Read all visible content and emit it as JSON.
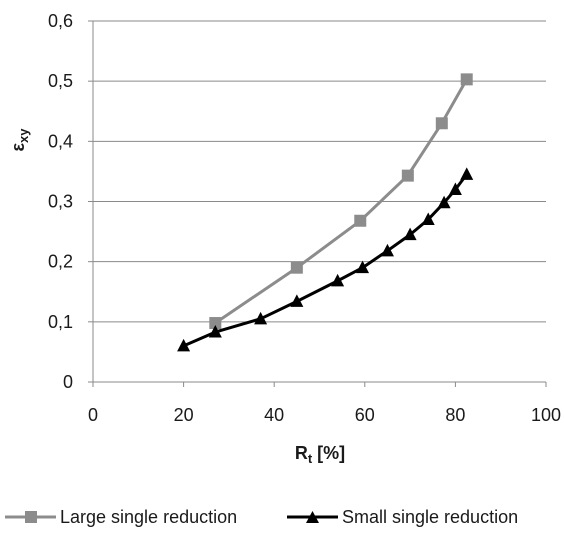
{
  "chart_data": {
    "type": "line",
    "xlabel": "R",
    "xlabel_sub": "t",
    "xlabel_suffix": " [%]",
    "ylabel": "ε",
    "ylabel_sub": "xy",
    "xlim": [
      0,
      100
    ],
    "ylim": [
      0,
      0.6
    ],
    "x_ticks": [
      {
        "value": 0,
        "label": "0"
      },
      {
        "value": 20,
        "label": "20"
      },
      {
        "value": 40,
        "label": "40"
      },
      {
        "value": 60,
        "label": "60"
      },
      {
        "value": 80,
        "label": "80"
      },
      {
        "value": 100,
        "label": "100"
      }
    ],
    "y_ticks": [
      {
        "value": 0,
        "label": "0"
      },
      {
        "value": 0.1,
        "label": "0,1"
      },
      {
        "value": 0.2,
        "label": "0,2"
      },
      {
        "value": 0.3,
        "label": "0,3"
      },
      {
        "value": 0.4,
        "label": "0,4"
      },
      {
        "value": 0.5,
        "label": "0,5"
      },
      {
        "value": 0.6,
        "label": "0,6"
      }
    ],
    "grid": "horizontal",
    "legend_position": "bottom",
    "series": [
      {
        "name": "Large single reduction",
        "color": "#8c8c8c",
        "marker": "square",
        "points": [
          {
            "x": 27,
            "y": 0.098
          },
          {
            "x": 45,
            "y": 0.19
          },
          {
            "x": 59,
            "y": 0.268
          },
          {
            "x": 69.5,
            "y": 0.343
          },
          {
            "x": 77,
            "y": 0.43
          },
          {
            "x": 82.5,
            "y": 0.503
          }
        ]
      },
      {
        "name": "Small single reduction",
        "color": "#000000",
        "marker": "triangle",
        "points": [
          {
            "x": 20,
            "y": 0.06
          },
          {
            "x": 27,
            "y": 0.083
          },
          {
            "x": 37,
            "y": 0.105
          },
          {
            "x": 45,
            "y": 0.134
          },
          {
            "x": 54,
            "y": 0.168
          },
          {
            "x": 59.5,
            "y": 0.19
          },
          {
            "x": 65,
            "y": 0.218
          },
          {
            "x": 70,
            "y": 0.245
          },
          {
            "x": 74,
            "y": 0.27
          },
          {
            "x": 77.5,
            "y": 0.298
          },
          {
            "x": 80,
            "y": 0.32
          },
          {
            "x": 82.5,
            "y": 0.345
          }
        ]
      }
    ]
  }
}
